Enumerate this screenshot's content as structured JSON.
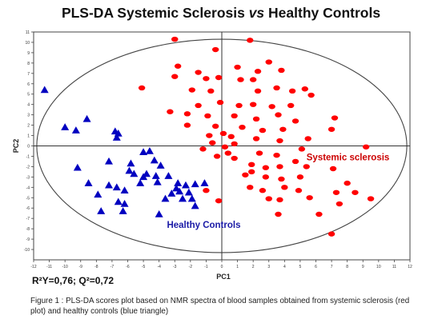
{
  "chart_data": {
    "type": "scatter",
    "title_prefix": "PLS-DA Systemic Sclerosis ",
    "title_vs": "vs",
    "title_suffix": " Healthy Controls",
    "xlabel": "PC1",
    "ylabel": "PC2",
    "xlim": [
      -12,
      12
    ],
    "ylim": [
      -11,
      11
    ],
    "xticks": [
      -12,
      -11,
      -10,
      -9,
      -8,
      -7,
      -6,
      -5,
      -4,
      -3,
      -2,
      -1,
      0,
      1,
      2,
      3,
      4,
      5,
      6,
      7,
      8,
      9,
      10,
      11,
      12
    ],
    "yticks": [
      -10,
      -9,
      -8,
      -7,
      -6,
      -5,
      -4,
      -3,
      -2,
      -1,
      0,
      1,
      2,
      3,
      4,
      5,
      6,
      7,
      8,
      9,
      10,
      11
    ],
    "grid": false,
    "series": [
      {
        "name": "Systemic sclerosis",
        "color": "#ff0000",
        "marker": "circle",
        "points": [
          [
            -3.0,
            10.3
          ],
          [
            1.8,
            10.2
          ],
          [
            -0.4,
            9.3
          ],
          [
            3.0,
            8.1
          ],
          [
            -2.8,
            7.7
          ],
          [
            1.0,
            7.6
          ],
          [
            3.8,
            7.3
          ],
          [
            -1.5,
            7.1
          ],
          [
            2.3,
            7.2
          ],
          [
            -3.0,
            6.7
          ],
          [
            -1.0,
            6.5
          ],
          [
            -0.2,
            6.6
          ],
          [
            1.2,
            6.4
          ],
          [
            2.0,
            6.4
          ],
          [
            -5.1,
            5.6
          ],
          [
            -1.9,
            5.4
          ],
          [
            -0.7,
            5.3
          ],
          [
            2.3,
            5.3
          ],
          [
            3.5,
            5.6
          ],
          [
            4.5,
            5.3
          ],
          [
            5.3,
            5.5
          ],
          [
            5.7,
            4.9
          ],
          [
            -0.1,
            4.2
          ],
          [
            -1.5,
            3.9
          ],
          [
            1.1,
            3.9
          ],
          [
            2.0,
            4.0
          ],
          [
            3.2,
            3.8
          ],
          [
            4.4,
            3.9
          ],
          [
            -3.3,
            3.3
          ],
          [
            -2.2,
            3.1
          ],
          [
            -0.9,
            2.9
          ],
          [
            0.8,
            2.9
          ],
          [
            2.2,
            2.6
          ],
          [
            3.6,
            3.0
          ],
          [
            4.7,
            2.4
          ],
          [
            7.2,
            2.7
          ],
          [
            -2.2,
            2.0
          ],
          [
            -0.4,
            1.9
          ],
          [
            1.3,
            1.8
          ],
          [
            2.6,
            1.5
          ],
          [
            3.9,
            1.6
          ],
          [
            7.0,
            1.6
          ],
          [
            -0.8,
            1.0
          ],
          [
            0.1,
            1.2
          ],
          [
            0.6,
            0.9
          ],
          [
            2.2,
            0.7
          ],
          [
            3.7,
            0.5
          ],
          [
            5.5,
            0.7
          ],
          [
            -0.6,
            0.3
          ],
          [
            0.2,
            -0.1
          ],
          [
            0.8,
            0.2
          ],
          [
            -1.2,
            -0.3
          ],
          [
            0.4,
            -0.7
          ],
          [
            2.4,
            -0.7
          ],
          [
            3.5,
            -0.9
          ],
          [
            5.1,
            -0.3
          ],
          [
            9.2,
            -0.1
          ],
          [
            -0.3,
            -1.0
          ],
          [
            0.8,
            -1.2
          ],
          [
            4.7,
            -1.5
          ],
          [
            1.9,
            -1.8
          ],
          [
            2.8,
            -2.1
          ],
          [
            3.7,
            -2.0
          ],
          [
            5.4,
            -2.0
          ],
          [
            7.1,
            -2.2
          ],
          [
            1.9,
            -2.5
          ],
          [
            1.5,
            -2.8
          ],
          [
            2.8,
            -3.0
          ],
          [
            3.8,
            -3.2
          ],
          [
            5.0,
            -3.0
          ],
          [
            8.0,
            -3.6
          ],
          [
            8.5,
            -4.5
          ],
          [
            -1.0,
            -4.3
          ],
          [
            1.8,
            -4.0
          ],
          [
            2.6,
            -4.3
          ],
          [
            4.0,
            -4.0
          ],
          [
            4.9,
            -4.3
          ],
          [
            7.3,
            -4.5
          ],
          [
            3.0,
            -5.1
          ],
          [
            3.7,
            -5.2
          ],
          [
            5.6,
            -5.0
          ],
          [
            9.5,
            -5.1
          ],
          [
            -0.2,
            -5.3
          ],
          [
            7.5,
            -5.6
          ],
          [
            6.2,
            -6.6
          ],
          [
            3.6,
            -6.6
          ],
          [
            7.0,
            -8.5
          ]
        ]
      },
      {
        "name": "Healthy Controls",
        "color": "#0000c0",
        "marker": "triangle",
        "points": [
          [
            -11.3,
            5.4
          ],
          [
            -10.0,
            1.8
          ],
          [
            -8.6,
            2.6
          ],
          [
            -9.3,
            1.5
          ],
          [
            -6.6,
            1.2
          ],
          [
            -6.8,
            1.4
          ],
          [
            -6.7,
            0.8
          ],
          [
            -9.2,
            -2.1
          ],
          [
            -7.2,
            -1.5
          ],
          [
            -5.0,
            -0.6
          ],
          [
            -4.6,
            -0.5
          ],
          [
            -4.3,
            -1.4
          ],
          [
            -5.8,
            -1.7
          ],
          [
            -3.9,
            -1.9
          ],
          [
            -5.9,
            -2.4
          ],
          [
            -5.6,
            -2.7
          ],
          [
            -4.8,
            -2.7
          ],
          [
            -5.0,
            -3.0
          ],
          [
            -4.2,
            -2.9
          ],
          [
            -3.4,
            -2.9
          ],
          [
            -8.5,
            -3.6
          ],
          [
            -7.2,
            -3.8
          ],
          [
            -6.7,
            -4.0
          ],
          [
            -6.2,
            -4.3
          ],
          [
            -5.2,
            -3.6
          ],
          [
            -4.1,
            -3.5
          ],
          [
            -2.8,
            -3.6
          ],
          [
            -2.3,
            -3.8
          ],
          [
            -1.7,
            -3.7
          ],
          [
            -1.1,
            -3.6
          ],
          [
            -7.9,
            -4.7
          ],
          [
            -2.9,
            -4.1
          ],
          [
            -3.2,
            -4.6
          ],
          [
            -2.7,
            -4.4
          ],
          [
            -2.1,
            -4.5
          ],
          [
            -3.6,
            -5.1
          ],
          [
            -2.5,
            -5.1
          ],
          [
            -1.9,
            -5.1
          ],
          [
            -6.6,
            -5.4
          ],
          [
            -6.3,
            -6.3
          ],
          [
            -1.7,
            -5.8
          ],
          [
            -4.0,
            -6.6
          ],
          [
            -7.7,
            -6.3
          ],
          [
            -6.2,
            -5.6
          ]
        ]
      }
    ],
    "annotations": [
      {
        "text": "Systemic sclerosis",
        "color": "#cc0000",
        "x": 5.4,
        "y": -1.4
      },
      {
        "text": "Healthy Controls",
        "color": "#1a1aa6",
        "x": -3.5,
        "y": -7.9
      }
    ],
    "confidence_ellipse": {
      "cx": 0,
      "cy": 0,
      "rx": 11.8,
      "ry": 10.3
    }
  },
  "stats_r2y": "R²Y=0,76; Q²=0,72",
  "caption": "Figure 1 : PLS-DA scores plot based on NMR spectra of blood samples obtained from systemic sclerosis (red plot) and healthy controls (blue triangle)"
}
